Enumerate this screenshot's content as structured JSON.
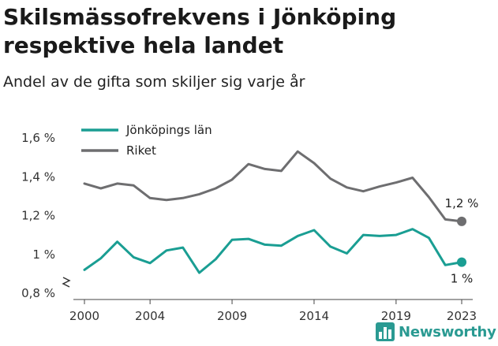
{
  "title": "Skilsmässofrekvens i Jönköping respektive hela landet",
  "subtitle": "Andel av de gifta som skiljer sig varje år",
  "brand": {
    "name": "Newsworthy",
    "color": "#2a9a92",
    "icon": "bar-chart-logo-icon"
  },
  "chart_data": {
    "type": "line",
    "x": [
      2000,
      2001,
      2002,
      2003,
      2004,
      2005,
      2006,
      2007,
      2008,
      2009,
      2010,
      2011,
      2012,
      2013,
      2014,
      2015,
      2016,
      2017,
      2018,
      2019,
      2020,
      2021,
      2022,
      2023
    ],
    "xticks": [
      2000,
      2004,
      2009,
      2014,
      2019,
      2023
    ],
    "ylim": [
      0.8,
      1.7
    ],
    "yticks": [
      0.8,
      1.0,
      1.2,
      1.4,
      1.6
    ],
    "ytick_labels": [
      "0,8 %",
      "1 %",
      "1,2 %",
      "1,4 %",
      "1,6 %"
    ],
    "axis_break": true,
    "grid": false,
    "legend_position": "top-left",
    "series": [
      {
        "name": "Jönköpings län",
        "color": "#1a9e93",
        "values": [
          0.92,
          0.98,
          1.065,
          0.985,
          0.955,
          1.02,
          1.035,
          0.905,
          0.975,
          1.075,
          1.08,
          1.05,
          1.045,
          1.095,
          1.125,
          1.04,
          1.005,
          1.1,
          1.095,
          1.1,
          1.13,
          1.085,
          0.945,
          0.96
        ],
        "end_label": "1 %"
      },
      {
        "name": "Riket",
        "color": "#6e6e70",
        "values": [
          1.365,
          1.34,
          1.365,
          1.355,
          1.29,
          1.28,
          1.29,
          1.31,
          1.34,
          1.385,
          1.465,
          1.44,
          1.43,
          1.53,
          1.47,
          1.39,
          1.345,
          1.325,
          1.35,
          1.37,
          1.395,
          1.295,
          1.18,
          1.17
        ],
        "end_label": "1,2 %"
      }
    ]
  }
}
